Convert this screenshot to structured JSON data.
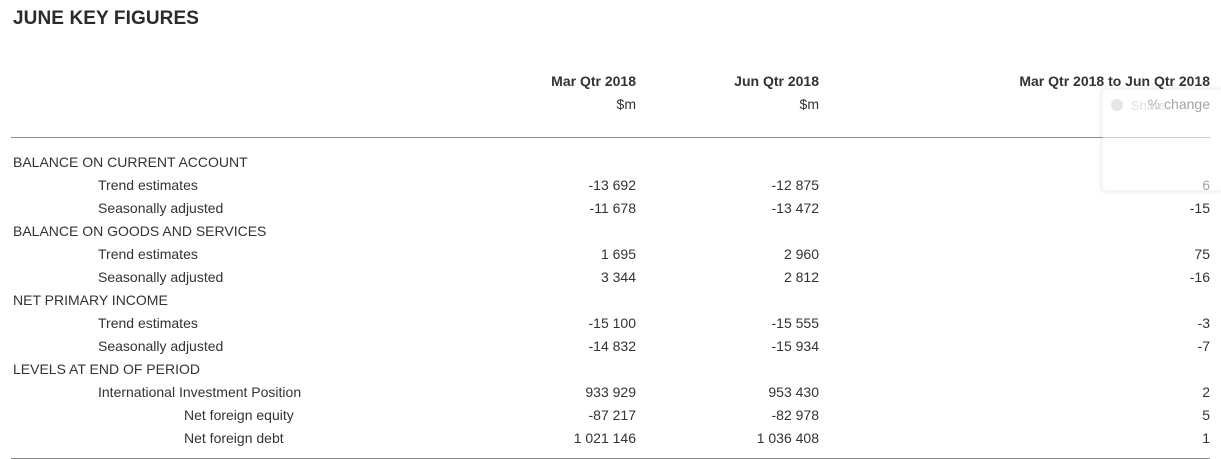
{
  "title": "JUNE KEY FIGURES",
  "columns": [
    {
      "label": "Mar Qtr 2018",
      "unit": "$m"
    },
    {
      "label": "Jun Qtr 2018",
      "unit": "$m"
    },
    {
      "label": "Mar Qtr 2018 to Jun Qtr 2018",
      "unit": "% change"
    }
  ],
  "rows": [
    {
      "label": "BALANCE ON CURRENT ACCOUNT",
      "mar": "",
      "jun": "",
      "chg": ""
    },
    {
      "label": "Trend estimates",
      "mar": "-13 692",
      "jun": "-12 875",
      "chg": "6"
    },
    {
      "label": "Seasonally adjusted",
      "mar": "-11 678",
      "jun": "-13 472",
      "chg": "-15"
    },
    {
      "label": "BALANCE ON GOODS AND SERVICES",
      "mar": "",
      "jun": "",
      "chg": ""
    },
    {
      "label": "Trend estimates",
      "mar": "1 695",
      "jun": "2 960",
      "chg": "75"
    },
    {
      "label": "Seasonally adjusted",
      "mar": "3 344",
      "jun": "2 812",
      "chg": "-16"
    },
    {
      "label": "NET PRIMARY INCOME",
      "mar": "",
      "jun": "",
      "chg": ""
    },
    {
      "label": "Trend estimates",
      "mar": "-15 100",
      "jun": "-15 555",
      "chg": "-3"
    },
    {
      "label": "Seasonally adjusted",
      "mar": "-14 832",
      "jun": "-15 934",
      "chg": "-7"
    },
    {
      "label": "LEVELS AT END OF PERIOD",
      "mar": "",
      "jun": "",
      "chg": ""
    },
    {
      "label": "International Investment Position",
      "mar": "933 929",
      "jun": "953 430",
      "chg": "2"
    },
    {
      "label": "Net foreign equity",
      "mar": "-87 217",
      "jun": "-82 978",
      "chg": "5"
    },
    {
      "label": "Net foreign debt",
      "mar": "1 021 146",
      "jun": "1 036 408",
      "chg": "1"
    }
  ],
  "overlay": {
    "text": "Share"
  }
}
